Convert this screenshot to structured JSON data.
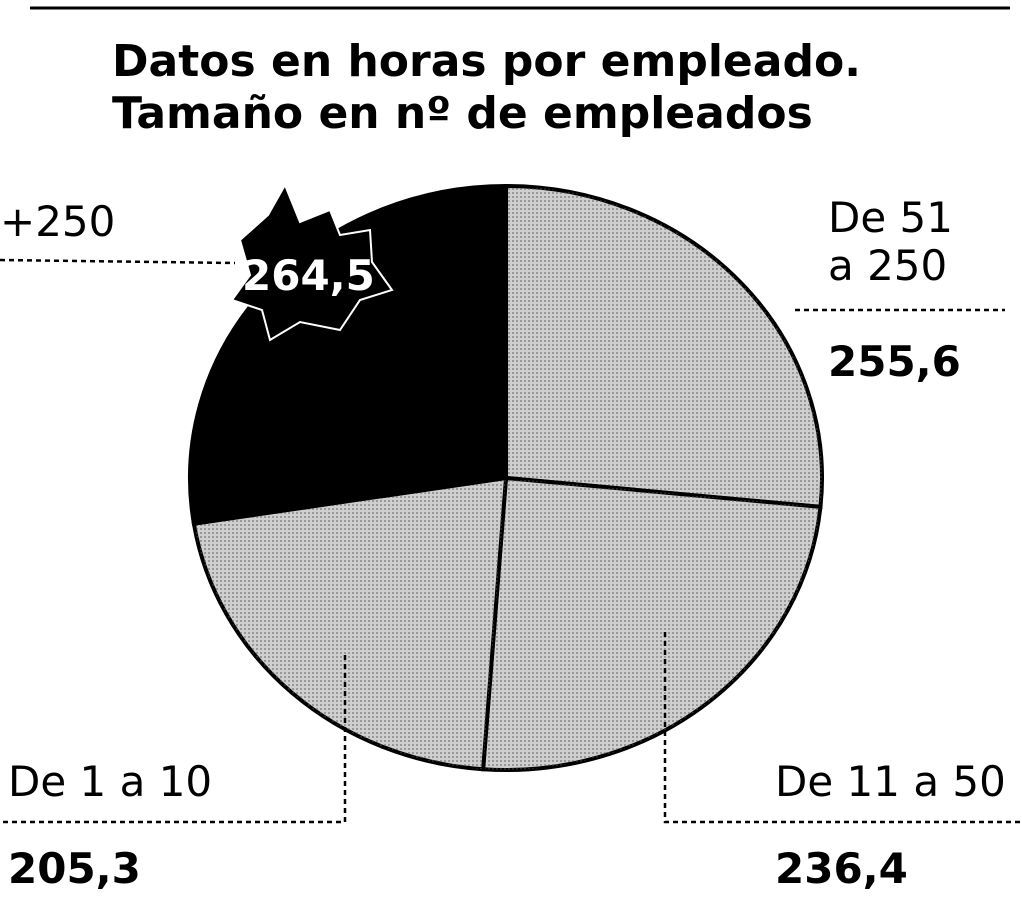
{
  "chart_data": {
    "type": "pie",
    "title": [
      "Datos en horas por empleado.",
      "Tamaño en nº de empleados"
    ],
    "categories": [
      "De 51 a 250",
      "De 11 a 50",
      "De 1 a 10",
      "+250"
    ],
    "values": [
      255.6,
      236.4,
      205.3,
      264.5
    ],
    "value_labels": [
      "255,6",
      "236,4",
      "205,3",
      "264,5"
    ],
    "colors": [
      "#cfcfcf",
      "#cfcfcf",
      "#cfcfcf",
      "#000000"
    ]
  }
}
